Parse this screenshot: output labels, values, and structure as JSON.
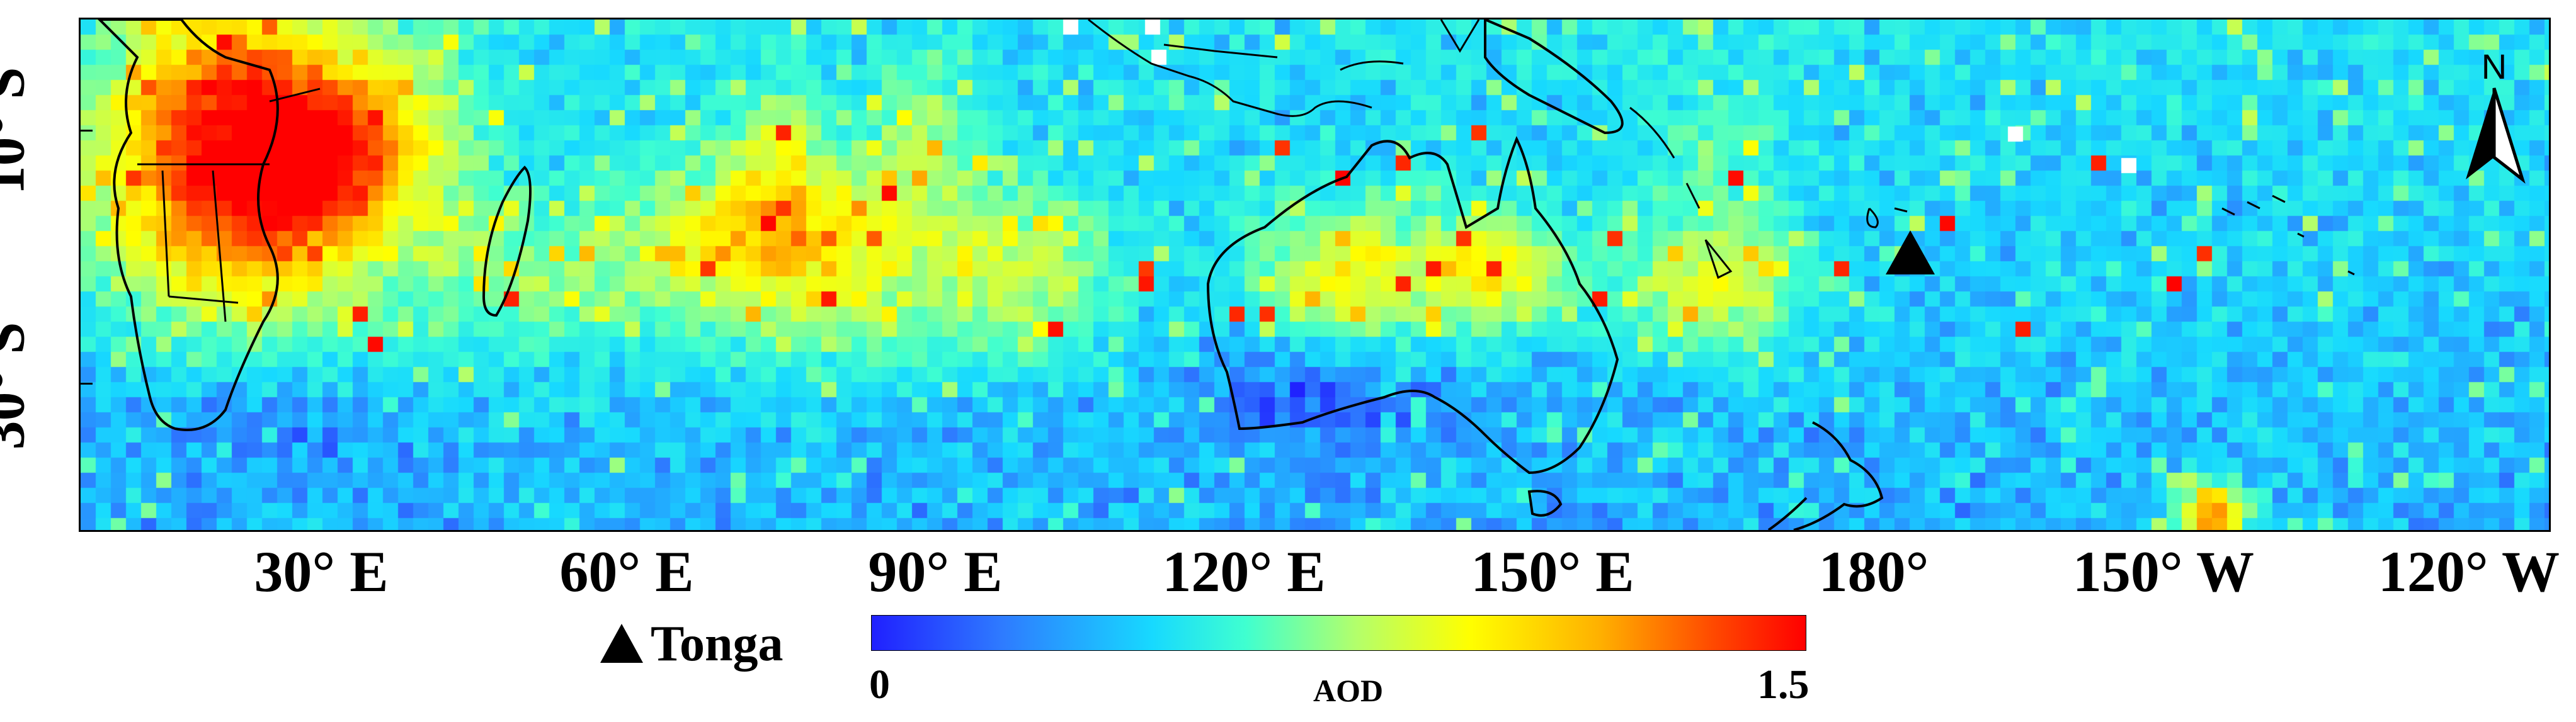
{
  "map": {
    "x_labels": [
      "30° E",
      "60° E",
      "90° E",
      "120° E",
      "150° E",
      "180°",
      "150° W",
      "120° W"
    ],
    "y_labels": [
      "10° S",
      "30° S"
    ],
    "north_label": "N",
    "volcano_marker_icon": "triangle-marker-icon"
  },
  "legend": {
    "marker_label": "Tonga",
    "colorbar_min": "0",
    "colorbar_max": "1.5",
    "colorbar_title": "AOD",
    "colormap": [
      "#2020ff",
      "#2e7bff",
      "#17d9ff",
      "#3fffd0",
      "#b4ff6a",
      "#ffff00",
      "#ffb000",
      "#ff4a00",
      "#ff0000"
    ]
  }
}
